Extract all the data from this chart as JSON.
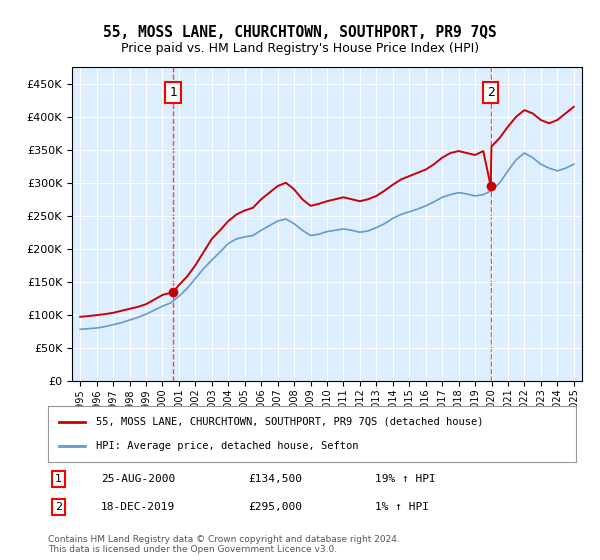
{
  "title": "55, MOSS LANE, CHURCHTOWN, SOUTHPORT, PR9 7QS",
  "subtitle": "Price paid vs. HM Land Registry's House Price Index (HPI)",
  "legend_line1": "55, MOSS LANE, CHURCHTOWN, SOUTHPORT, PR9 7QS (detached house)",
  "legend_line2": "HPI: Average price, detached house, Sefton",
  "footer": "Contains HM Land Registry data © Crown copyright and database right 2024.\nThis data is licensed under the Open Government Licence v3.0.",
  "annotation1": {
    "num": "1",
    "date": "25-AUG-2000",
    "price": "£134,500",
    "hpi": "19% ↑ HPI"
  },
  "annotation2": {
    "num": "2",
    "date": "18-DEC-2019",
    "price": "£295,000",
    "hpi": "1% ↑ HPI"
  },
  "ylim": [
    0,
    475000
  ],
  "xlim_start": 1995.0,
  "xlim_end": 2025.5,
  "yticks": [
    0,
    50000,
    100000,
    150000,
    200000,
    250000,
    300000,
    350000,
    400000,
    450000
  ],
  "xticks": [
    1995,
    1996,
    1997,
    1998,
    1999,
    2000,
    2001,
    2002,
    2003,
    2004,
    2005,
    2006,
    2007,
    2008,
    2009,
    2010,
    2011,
    2012,
    2013,
    2014,
    2015,
    2016,
    2017,
    2018,
    2019,
    2020,
    2021,
    2022,
    2023,
    2024,
    2025
  ],
  "property_color": "#cc0000",
  "hpi_color": "#6699cc",
  "background_color": "#ddeeff",
  "plot_bg": "#ddeeff",
  "marker1_x": 2000.65,
  "marker1_y": 134500,
  "marker2_x": 2019.95,
  "marker2_y": 295000,
  "property_data_x": [
    1995.0,
    1995.5,
    1996.0,
    1996.5,
    1997.0,
    1997.5,
    1998.0,
    1998.5,
    1999.0,
    1999.5,
    2000.0,
    2000.65,
    2001.0,
    2001.5,
    2002.0,
    2002.5,
    2003.0,
    2003.5,
    2004.0,
    2004.5,
    2005.0,
    2005.5,
    2006.0,
    2006.5,
    2007.0,
    2007.5,
    2008.0,
    2008.5,
    2009.0,
    2009.5,
    2010.0,
    2010.5,
    2011.0,
    2011.5,
    2012.0,
    2012.5,
    2013.0,
    2013.5,
    2014.0,
    2014.5,
    2015.0,
    2015.5,
    2016.0,
    2016.5,
    2017.0,
    2017.5,
    2018.0,
    2018.5,
    2019.0,
    2019.5,
    2019.95,
    2020.0,
    2020.5,
    2021.0,
    2021.5,
    2022.0,
    2022.5,
    2023.0,
    2023.5,
    2024.0,
    2024.5,
    2025.0
  ],
  "property_data_y": [
    97000,
    98000,
    99500,
    101000,
    103000,
    106000,
    109000,
    112000,
    116000,
    123000,
    130000,
    134500,
    145000,
    158000,
    175000,
    195000,
    215000,
    228000,
    242000,
    252000,
    258000,
    262000,
    275000,
    285000,
    295000,
    300000,
    290000,
    275000,
    265000,
    268000,
    272000,
    275000,
    278000,
    275000,
    272000,
    275000,
    280000,
    288000,
    297000,
    305000,
    310000,
    315000,
    320000,
    328000,
    338000,
    345000,
    348000,
    345000,
    342000,
    348000,
    295000,
    355000,
    368000,
    385000,
    400000,
    410000,
    405000,
    395000,
    390000,
    395000,
    405000,
    415000
  ],
  "hpi_data_x": [
    1995.0,
    1995.5,
    1996.0,
    1996.5,
    1997.0,
    1997.5,
    1998.0,
    1998.5,
    1999.0,
    1999.5,
    2000.0,
    2000.5,
    2001.0,
    2001.5,
    2002.0,
    2002.5,
    2003.0,
    2003.5,
    2004.0,
    2004.5,
    2005.0,
    2005.5,
    2006.0,
    2006.5,
    2007.0,
    2007.5,
    2008.0,
    2008.5,
    2009.0,
    2009.5,
    2010.0,
    2010.5,
    2011.0,
    2011.5,
    2012.0,
    2012.5,
    2013.0,
    2013.5,
    2014.0,
    2014.5,
    2015.0,
    2015.5,
    2016.0,
    2016.5,
    2017.0,
    2017.5,
    2018.0,
    2018.5,
    2019.0,
    2019.5,
    2020.0,
    2020.5,
    2021.0,
    2021.5,
    2022.0,
    2022.5,
    2023.0,
    2023.5,
    2024.0,
    2024.5,
    2025.0
  ],
  "hpi_data_y": [
    78000,
    79000,
    80000,
    82000,
    85000,
    88000,
    92000,
    96000,
    101000,
    107000,
    113000,
    118000,
    128000,
    140000,
    155000,
    170000,
    183000,
    195000,
    208000,
    215000,
    218000,
    220000,
    228000,
    235000,
    242000,
    245000,
    238000,
    228000,
    220000,
    222000,
    226000,
    228000,
    230000,
    228000,
    225000,
    227000,
    232000,
    238000,
    246000,
    252000,
    256000,
    260000,
    265000,
    271000,
    278000,
    282000,
    285000,
    283000,
    280000,
    282000,
    288000,
    300000,
    318000,
    335000,
    345000,
    338000,
    328000,
    322000,
    318000,
    322000,
    328000
  ]
}
